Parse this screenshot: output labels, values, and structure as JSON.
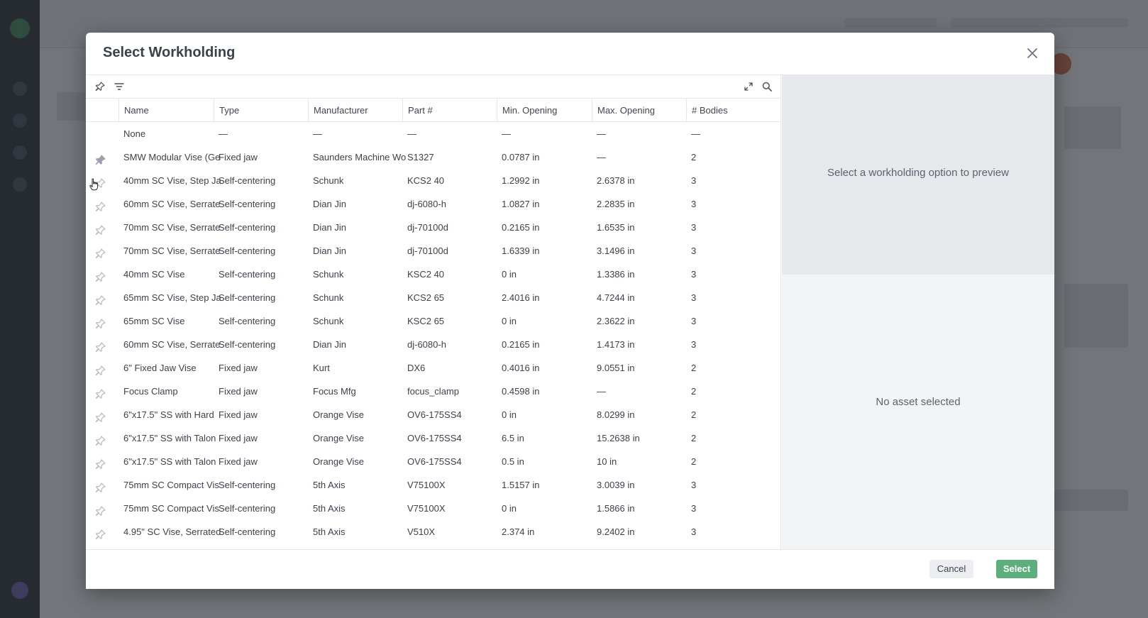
{
  "modal": {
    "title": "Select Workholding",
    "preview_prompt": "Select a workholding option to preview",
    "no_asset": "No asset selected",
    "cancel_label": "Cancel",
    "select_label": "Select"
  },
  "columns": [
    "Name",
    "Type",
    "Manufacturer",
    "Part #",
    "Min. Opening",
    "Max. Opening",
    "# Bodies"
  ],
  "rows": [
    {
      "pinned": null,
      "name": "None",
      "type": "—",
      "manufacturer": "—",
      "part": "—",
      "min": "—",
      "max": "—",
      "bodies": "—"
    },
    {
      "pinned": true,
      "name": "SMW Modular Vise (Ge",
      "type": "Fixed jaw",
      "manufacturer": "Saunders Machine Wo",
      "part": "S1327",
      "min": "0.0787 in",
      "max": "—",
      "bodies": "2"
    },
    {
      "pinned": false,
      "name": "40mm SC Vise, Step Ja",
      "type": "Self-centering",
      "manufacturer": "Schunk",
      "part": "KCS2 40",
      "min": "1.2992 in",
      "max": "2.6378 in",
      "bodies": "3"
    },
    {
      "pinned": false,
      "name": "60mm SC Vise, Serrate",
      "type": "Self-centering",
      "manufacturer": "Dian Jin",
      "part": "dj-6080-h",
      "min": "1.0827 in",
      "max": "2.2835 in",
      "bodies": "3"
    },
    {
      "pinned": false,
      "name": "70mm SC Vise, Serrate",
      "type": "Self-centering",
      "manufacturer": "Dian Jin",
      "part": "dj-70100d",
      "min": "0.2165 in",
      "max": "1.6535 in",
      "bodies": "3"
    },
    {
      "pinned": false,
      "name": "70mm SC Vise, Serrate",
      "type": "Self-centering",
      "manufacturer": "Dian Jin",
      "part": "dj-70100d",
      "min": "1.6339 in",
      "max": "3.1496 in",
      "bodies": "3"
    },
    {
      "pinned": false,
      "name": "40mm SC Vise",
      "type": "Self-centering",
      "manufacturer": "Schunk",
      "part": "KSC2 40",
      "min": "0 in",
      "max": "1.3386 in",
      "bodies": "3"
    },
    {
      "pinned": false,
      "name": "65mm SC Vise, Step Ja",
      "type": "Self-centering",
      "manufacturer": "Schunk",
      "part": "KCS2 65",
      "min": "2.4016 in",
      "max": "4.7244 in",
      "bodies": "3"
    },
    {
      "pinned": false,
      "name": "65mm SC Vise",
      "type": "Self-centering",
      "manufacturer": "Schunk",
      "part": "KSC2 65",
      "min": "0 in",
      "max": "2.3622 in",
      "bodies": "3"
    },
    {
      "pinned": false,
      "name": "60mm SC Vise, Serrate",
      "type": "Self-centering",
      "manufacturer": "Dian Jin",
      "part": "dj-6080-h",
      "min": "0.2165 in",
      "max": "1.4173 in",
      "bodies": "3"
    },
    {
      "pinned": false,
      "name": "6\" Fixed Jaw Vise",
      "type": "Fixed jaw",
      "manufacturer": "Kurt",
      "part": "DX6",
      "min": "0.4016 in",
      "max": "9.0551 in",
      "bodies": "2"
    },
    {
      "pinned": false,
      "name": "Focus Clamp",
      "type": "Fixed jaw",
      "manufacturer": "Focus Mfg",
      "part": "focus_clamp",
      "min": "0.4598 in",
      "max": "—",
      "bodies": "2"
    },
    {
      "pinned": false,
      "name": "6\"x17.5\" SS with Hard",
      "type": "Fixed jaw",
      "manufacturer": "Orange Vise",
      "part": "OV6-175SS4",
      "min": "0 in",
      "max": "8.0299 in",
      "bodies": "2"
    },
    {
      "pinned": false,
      "name": "6\"x17.5\" SS with Talon",
      "type": "Fixed jaw",
      "manufacturer": "Orange Vise",
      "part": "OV6-175SS4",
      "min": "6.5 in",
      "max": "15.2638 in",
      "bodies": "2"
    },
    {
      "pinned": false,
      "name": "6\"x17.5\" SS with Talon",
      "type": "Fixed jaw",
      "manufacturer": "Orange Vise",
      "part": "OV6-175SS4",
      "min": "0.5 in",
      "max": "10 in",
      "bodies": "2"
    },
    {
      "pinned": false,
      "name": "75mm SC Compact Vis",
      "type": "Self-centering",
      "manufacturer": "5th Axis",
      "part": "V75100X",
      "min": "1.5157 in",
      "max": "3.0039 in",
      "bodies": "3"
    },
    {
      "pinned": false,
      "name": "75mm SC Compact Vis",
      "type": "Self-centering",
      "manufacturer": "5th Axis",
      "part": "V75100X",
      "min": "0 in",
      "max": "1.5866 in",
      "bodies": "3"
    },
    {
      "pinned": false,
      "name": "4.95\" SC Vise, Serrated",
      "type": "Self-centering",
      "manufacturer": "5th Axis",
      "part": "V510X",
      "min": "2.374 in",
      "max": "9.2402 in",
      "bodies": "3"
    }
  ],
  "colors": {
    "accent": "#5cae7c",
    "pinned_icon": "#9aa1aa",
    "unpinned_icon": "#b3b9c1"
  }
}
